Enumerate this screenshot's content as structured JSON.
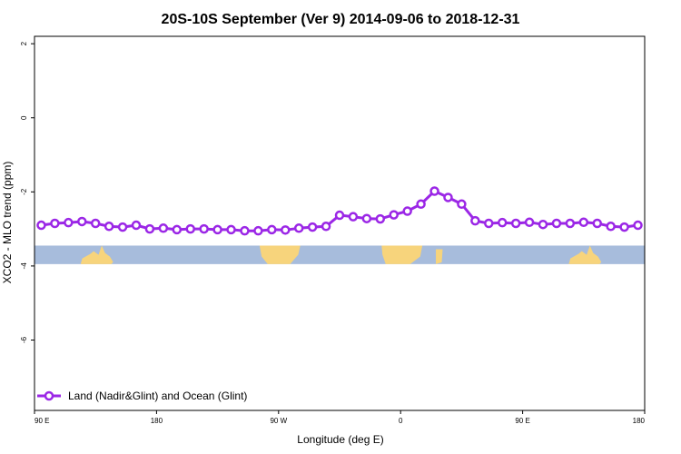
{
  "chart_data": {
    "type": "line",
    "title": "20S-10S September (Ver 9)   2014-09-06 to 2018-12-31",
    "xlabel": "Longitude (deg E)",
    "ylabel": "XCO2 - MLO trend (ppm)",
    "x_tick_labels": [
      "90 E",
      "180",
      "90 W",
      "0",
      "90 E",
      "180"
    ],
    "x_tick_positions": [
      90,
      180,
      270,
      360,
      450,
      540
    ],
    "xlim": [
      90,
      540
    ],
    "y_ticks": [
      2,
      0,
      -2,
      -4,
      -6
    ],
    "ylim": [
      -7.9,
      2.2
    ],
    "grid": false,
    "legend_position": "bottom-left",
    "colors": {
      "series": "#9b27e6",
      "ocean": "#a7bcdc",
      "land": "#f7d47c"
    },
    "map_strip": {
      "y_top": -3.45,
      "y_bottom": -3.95,
      "land_ranges": [
        [
          124,
          148
        ],
        [
          148,
          150
        ],
        [
          148.5,
          150
        ],
        [
          256,
          286
        ],
        [
          272,
          275
        ],
        [
          344,
          378
        ],
        [
          387,
          392
        ],
        [
          536,
          548
        ]
      ],
      "land_ranges_shifted": [
        [
          484,
          508
        ],
        [
          488,
          504
        ]
      ]
    },
    "series": [
      {
        "name": "Land (Nadir&Glint) and Ocean (Glint)",
        "x": [
          95,
          105,
          115,
          125,
          135,
          145,
          155,
          165,
          175,
          185,
          195,
          205,
          215,
          225,
          235,
          245,
          255,
          265,
          275,
          285,
          295,
          305,
          315,
          325,
          335,
          345,
          355,
          365,
          375,
          385,
          395,
          405,
          415,
          425,
          435,
          445,
          455,
          465,
          475,
          485,
          495,
          505,
          515,
          525,
          535
        ],
        "values": [
          -2.9,
          -2.85,
          -2.83,
          -2.8,
          -2.85,
          -2.93,
          -2.95,
          -2.9,
          -3.0,
          -2.98,
          -3.02,
          -3.0,
          -3.0,
          -3.02,
          -3.02,
          -3.05,
          -3.05,
          -3.02,
          -3.03,
          -2.98,
          -2.95,
          -2.93,
          -2.63,
          -2.67,
          -2.72,
          -2.73,
          -2.62,
          -2.52,
          -2.33,
          -1.98,
          -2.15,
          -2.33,
          -2.78,
          -2.85,
          -2.83,
          -2.85,
          -2.82,
          -2.88,
          -2.85,
          -2.85,
          -2.82,
          -2.85,
          -2.93,
          -2.95,
          -2.9
        ]
      }
    ]
  }
}
